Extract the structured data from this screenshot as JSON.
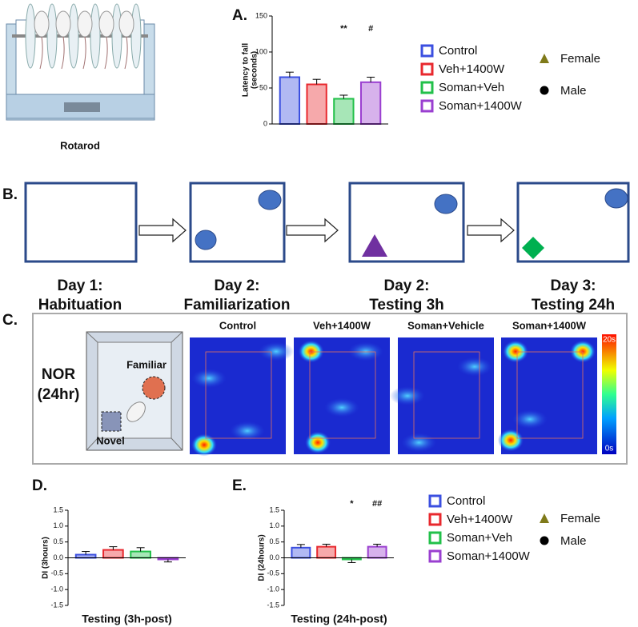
{
  "rotarod": {
    "label": "Rotarod"
  },
  "chart_data": [
    {
      "type": "bar",
      "panel": "A.",
      "ylabel": [
        "Latency to fall",
        "(seconds)"
      ],
      "categories": [
        "Control",
        "Veh+1400W",
        "Soman+Veh",
        "Soman+1400W"
      ],
      "colors": [
        "#3b4fe0",
        "#e8282e",
        "#22c04a",
        "#9a3fd0"
      ],
      "values": [
        65,
        55,
        35,
        58
      ],
      "errors": [
        7,
        7,
        5,
        7
      ],
      "ylim": [
        0,
        150
      ],
      "yticks": [
        0,
        50,
        100,
        150
      ],
      "annotations": [
        {
          "text": "**",
          "category": "Soman+Veh"
        },
        {
          "text": "#",
          "category": "Soman+1400W"
        }
      ]
    },
    {
      "type": "bar",
      "panel": "D.",
      "ylabel": [
        "DI (3hours)"
      ],
      "xlabel": "Testing (3h-post)",
      "categories": [
        "Control",
        "Veh+1400W",
        "Soman+Veh",
        "Soman+1400W"
      ],
      "colors": [
        "#3b4fe0",
        "#e8282e",
        "#22c04a",
        "#9a3fd0"
      ],
      "values": [
        0.1,
        0.25,
        0.2,
        -0.05
      ],
      "errors": [
        0.1,
        0.1,
        0.12,
        0.08
      ],
      "ylim": [
        -1.5,
        1.5
      ],
      "yticks": [
        -1.5,
        {
          "value": -1,
          "label": "-1.0"
        },
        -0.5,
        {
          "value": 0,
          "label": "0.0"
        },
        0.5,
        {
          "value": 1,
          "label": "1.0"
        },
        1.5
      ]
    },
    {
      "type": "bar",
      "panel": "E.",
      "ylabel": [
        "DI (24hours)"
      ],
      "xlabel": "Testing (24h-post)",
      "categories": [
        "Control",
        "Veh+1400W",
        "Soman+Veh",
        "Soman+1400W"
      ],
      "colors": [
        "#3b4fe0",
        "#e8282e",
        "#22c04a",
        "#9a3fd0"
      ],
      "values": [
        0.32,
        0.35,
        -0.05,
        0.35
      ],
      "errors": [
        0.1,
        0.08,
        0.1,
        0.08
      ],
      "ylim": [
        -1.5,
        1.5
      ],
      "yticks": [
        -1.5,
        {
          "value": -1,
          "label": "-1.0"
        },
        -0.5,
        {
          "value": 0,
          "label": "0.0"
        },
        0.5,
        {
          "value": 1,
          "label": "1.0"
        },
        1.5
      ],
      "annotations": [
        {
          "text": "*",
          "category": "Soman+Veh"
        },
        {
          "text": "##",
          "category": "Soman+1400W"
        }
      ]
    }
  ],
  "legends": [
    {
      "series": [
        {
          "name": "Control",
          "color": "#3b4fe0"
        },
        {
          "name": "Veh+1400W",
          "color": "#e8282e"
        },
        {
          "name": "Soman+Veh",
          "color": "#22c04a"
        },
        {
          "name": "Soman+1400W",
          "color": "#9a3fd0"
        }
      ],
      "sex": [
        {
          "name": "Female",
          "marker": "triangle",
          "color": "#7f7a1a"
        },
        {
          "name": "Male",
          "marker": "circle",
          "color": "#000000"
        }
      ]
    },
    {
      "series": [
        {
          "name": "Control",
          "color": "#3b4fe0"
        },
        {
          "name": "Veh+1400W",
          "color": "#e8282e"
        },
        {
          "name": "Soman+Veh",
          "color": "#22c04a"
        },
        {
          "name": "Soman+1400W",
          "color": "#9a3fd0"
        }
      ],
      "sex": [
        {
          "name": "Female",
          "marker": "triangle",
          "color": "#7f7a1a"
        },
        {
          "name": "Male",
          "marker": "circle",
          "color": "#000000"
        }
      ]
    }
  ],
  "panel_b": {
    "label": "B.",
    "steps": [
      {
        "title": "Day 1:",
        "subtitle": "Habituation"
      },
      {
        "title": "Day 2:",
        "subtitle": "Familiarization"
      },
      {
        "title": "Day 2:",
        "subtitle": "Testing 3h"
      },
      {
        "title": "Day 3:",
        "subtitle": "Testing 24h"
      }
    ]
  },
  "panel_c": {
    "label": "C.",
    "test": [
      "NOR",
      "(24hr)"
    ],
    "objects": [
      "Familiar",
      "Novel"
    ],
    "groups": [
      "Control",
      "Veh+1400W",
      "Soman+Vehicle",
      "Soman+1400W"
    ],
    "scale": [
      "20s",
      "0s"
    ]
  }
}
